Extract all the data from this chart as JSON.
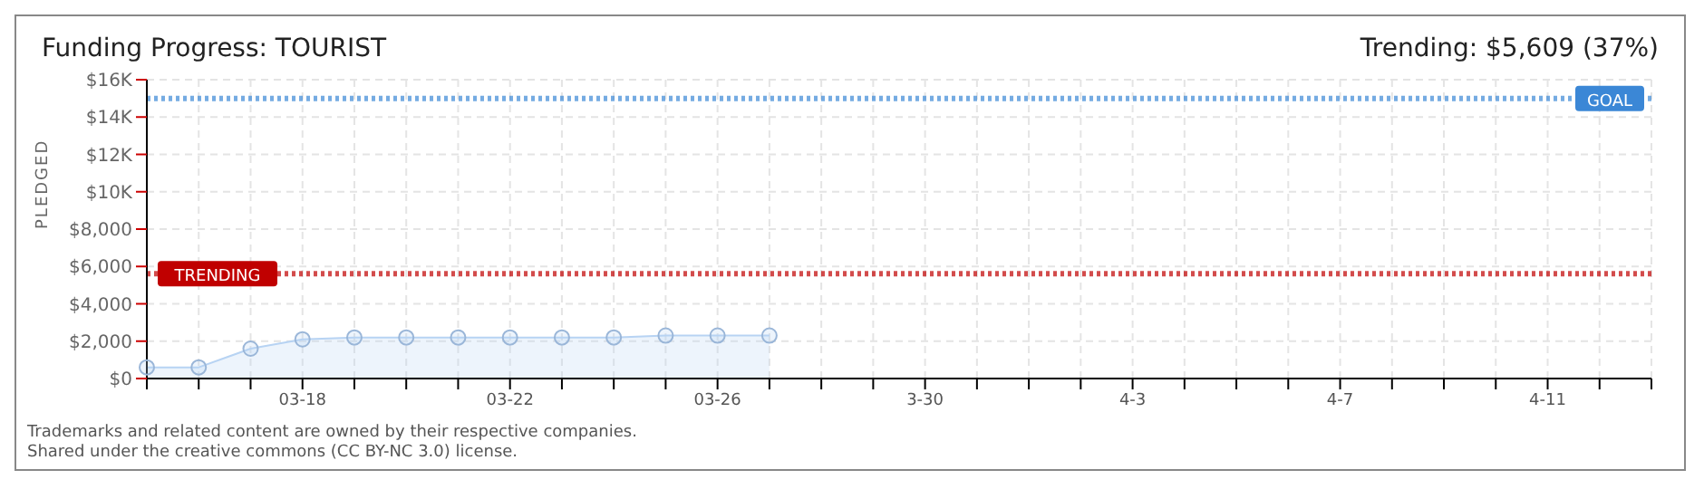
{
  "chart_data": {
    "type": "area",
    "title": "Funding Progress: TOURIST",
    "subtitle": "Trending: $5,609 (37%)",
    "ylabel": "PLEDGED",
    "categories": [
      null,
      null,
      null,
      "03-18",
      null,
      null,
      null,
      "03-22",
      null,
      null,
      null,
      "03-26",
      null,
      null,
      null,
      "3-30",
      null,
      null,
      null,
      "4-3",
      null,
      null,
      null,
      "4-7",
      null,
      null,
      null,
      "4-11",
      null,
      null
    ],
    "series": [
      {
        "color": "#b7d3f3",
        "values": [
          600,
          600,
          1600,
          2100,
          2200,
          2200,
          2200,
          2200,
          2200,
          2200,
          2300,
          2300,
          2300,
          null,
          null,
          null,
          null,
          null,
          null,
          null,
          null,
          null,
          null,
          null,
          null,
          null,
          null,
          null,
          null,
          null
        ]
      }
    ],
    "ylim": [
      0,
      16000
    ],
    "yticks": [
      {
        "value": 0,
        "label": "$0"
      },
      {
        "value": 2000,
        "label": "$2,000"
      },
      {
        "value": 4000,
        "label": "$4,000"
      },
      {
        "value": 6000,
        "label": "$6,000"
      },
      {
        "value": 8000,
        "label": "$8,000"
      },
      {
        "value": 10000,
        "label": "$10K"
      },
      {
        "value": 12000,
        "label": "$12K"
      },
      {
        "value": 14000,
        "label": "$14K"
      },
      {
        "value": 16000,
        "label": "$16K"
      }
    ],
    "ref_lines": [
      {
        "axis": "y",
        "value": 15000,
        "label": "GOAL",
        "color": "#3b87d6",
        "line_style": "dotted"
      },
      {
        "axis": "y",
        "value": 5609,
        "label": "TRENDING",
        "color": "#c00000",
        "line_style": "dotted"
      }
    ],
    "annotations": [
      "Trademarks and related content are owned by their respective companies.",
      "Shared under the creative commons (CC BY-NC 3.0) license."
    ],
    "grid": true,
    "marker": "circle",
    "line_style": "solid",
    "legend": false
  }
}
